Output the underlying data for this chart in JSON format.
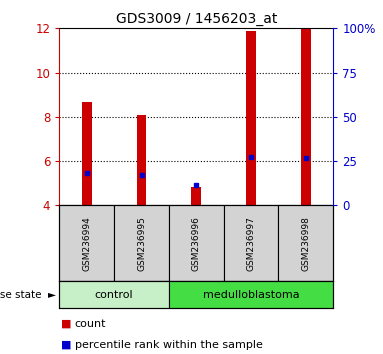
{
  "title": "GDS3009 / 1456203_at",
  "samples": [
    "GSM236994",
    "GSM236995",
    "GSM236996",
    "GSM236997",
    "GSM236998"
  ],
  "count_values": [
    8.65,
    8.1,
    4.85,
    11.9,
    11.95
  ],
  "percentile_values": [
    5.45,
    5.35,
    4.92,
    6.2,
    6.15
  ],
  "ylim_left": [
    4,
    12
  ],
  "ylim_right": [
    0,
    100
  ],
  "yticks_left": [
    4,
    6,
    8,
    10,
    12
  ],
  "yticks_right": [
    0,
    25,
    50,
    75,
    100
  ],
  "ytick_labels_right": [
    "0",
    "25",
    "50",
    "75",
    "100%"
  ],
  "bar_color": "#cc0000",
  "percentile_color": "#0000cc",
  "groups_def": [
    {
      "label": "control",
      "indices": [
        0,
        1
      ],
      "color": "#c8f0c8"
    },
    {
      "label": "medulloblastoma",
      "indices": [
        2,
        3,
        4
      ],
      "color": "#44dd44"
    }
  ],
  "disease_state_label": "disease state",
  "legend_count_label": "count",
  "legend_percentile_label": "percentile rank within the sample",
  "background_color": "#ffffff",
  "label_area_bg": "#d3d3d3",
  "bar_width": 0.18,
  "grid_yticks": [
    6,
    8,
    10
  ]
}
